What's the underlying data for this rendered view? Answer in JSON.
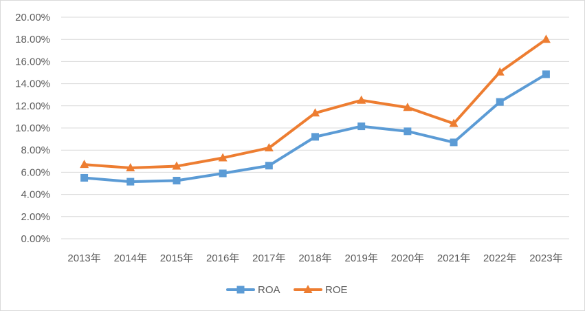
{
  "chart_data": {
    "type": "line",
    "categories": [
      "2013年",
      "2014年",
      "2015年",
      "2016年",
      "2017年",
      "2018年",
      "2019年",
      "2020年",
      "2021年",
      "2022年",
      "2023年"
    ],
    "series": [
      {
        "name": "ROA",
        "color": "#5b9bd5",
        "marker": "square",
        "values": [
          0.055,
          0.0515,
          0.0525,
          0.059,
          0.066,
          0.092,
          0.1015,
          0.097,
          0.087,
          0.1235,
          0.1485
        ]
      },
      {
        "name": "ROE",
        "color": "#ed7d31",
        "marker": "triangle",
        "values": [
          0.067,
          0.064,
          0.0655,
          0.073,
          0.082,
          0.1135,
          0.125,
          0.1185,
          0.104,
          0.1505,
          0.18
        ]
      }
    ],
    "yticks": [
      "0.00%",
      "2.00%",
      "4.00%",
      "6.00%",
      "8.00%",
      "10.00%",
      "12.00%",
      "14.00%",
      "16.00%",
      "18.00%",
      "20.00%"
    ],
    "ylim": [
      0,
      0.2
    ],
    "grid": true,
    "legend_position": "bottom",
    "gridline_color": "#d9d9d9"
  }
}
